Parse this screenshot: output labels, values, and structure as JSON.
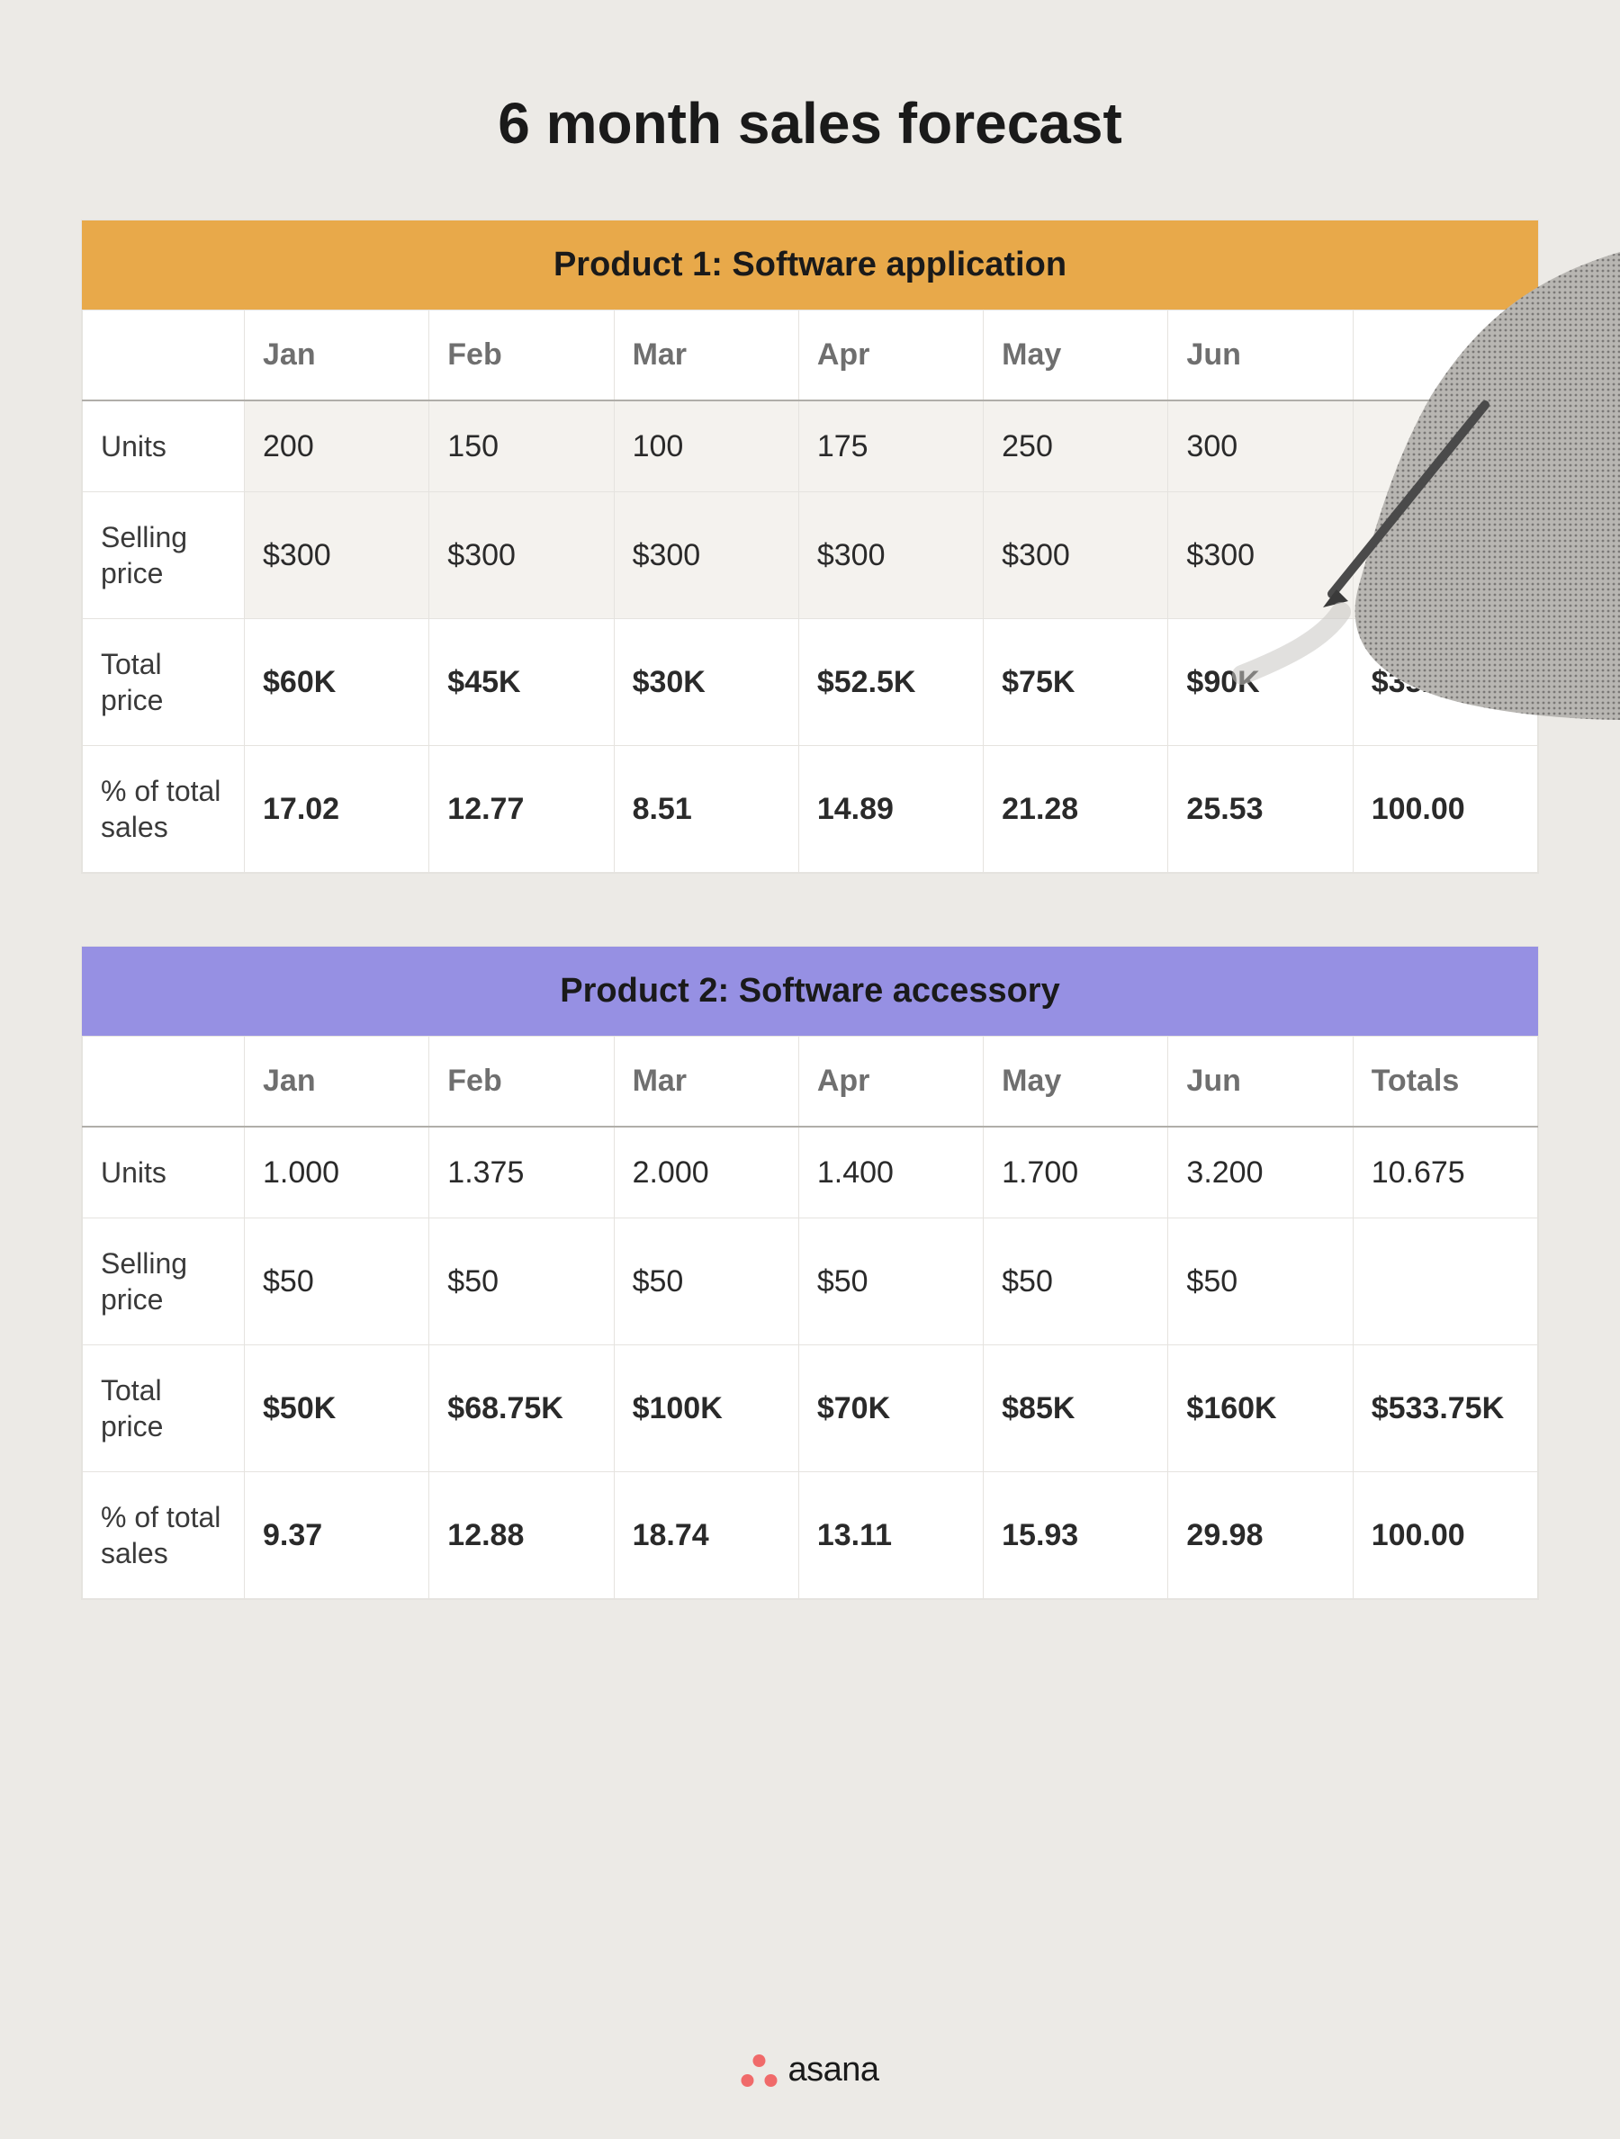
{
  "page_title": "6 month sales forecast",
  "background_color": "#eceae6",
  "table_border_color": "#e5e3df",
  "header_divider_color": "#b0aea9",
  "shade_row_color": "#f4f2ee",
  "month_label_color": "#6f6f6f",
  "tables": [
    {
      "title": "Product 1: Software application",
      "header_color": "#e8a94a",
      "columns": [
        "Jan",
        "Feb",
        "Mar",
        "Apr",
        "May",
        "Jun",
        ""
      ],
      "show_totals_header": false,
      "rows": [
        {
          "label": "Units",
          "shade": true,
          "bold": false,
          "cells": [
            "200",
            "150",
            "100",
            "175",
            "250",
            "300",
            ""
          ]
        },
        {
          "label": "Selling price",
          "shade": true,
          "bold": false,
          "cells": [
            "$300",
            "$300",
            "$300",
            "$300",
            "$300",
            "$300",
            ""
          ]
        },
        {
          "label": "Total price",
          "shade": false,
          "bold": true,
          "cells": [
            "$60K",
            "$45K",
            "$30K",
            "$52.5K",
            "$75K",
            "$90K",
            "$352.5K"
          ]
        },
        {
          "label": "% of total sales",
          "shade": false,
          "bold": true,
          "cells": [
            "17.02",
            "12.77",
            "8.51",
            "14.89",
            "21.28",
            "25.53",
            "100.00"
          ]
        }
      ]
    },
    {
      "title": "Product 2: Software accessory",
      "header_color": "#9690e3",
      "columns": [
        "Jan",
        "Feb",
        "Mar",
        "Apr",
        "May",
        "Jun",
        "Totals"
      ],
      "show_totals_header": true,
      "rows": [
        {
          "label": "Units",
          "shade": false,
          "bold": false,
          "cells": [
            "1.000",
            "1.375",
            "2.000",
            "1.400",
            "1.700",
            "3.200",
            "10.675"
          ]
        },
        {
          "label": "Selling price",
          "shade": false,
          "bold": false,
          "cells": [
            "$50",
            "$50",
            "$50",
            "$50",
            "$50",
            "$50",
            ""
          ]
        },
        {
          "label": "Total price",
          "shade": false,
          "bold": true,
          "cells": [
            "$50K",
            "$68.75K",
            "$100K",
            "$70K",
            "$85K",
            "$160K",
            "$533.75K"
          ]
        },
        {
          "label": "% of total sales",
          "shade": false,
          "bold": true,
          "cells": [
            "9.37",
            "12.88",
            "18.74",
            "13.11",
            "15.93",
            "29.98",
            "100.00"
          ]
        }
      ]
    }
  ],
  "logo": {
    "text": "asana",
    "dot_color": "#f06a6a",
    "text_color": "#1a1a1a"
  }
}
